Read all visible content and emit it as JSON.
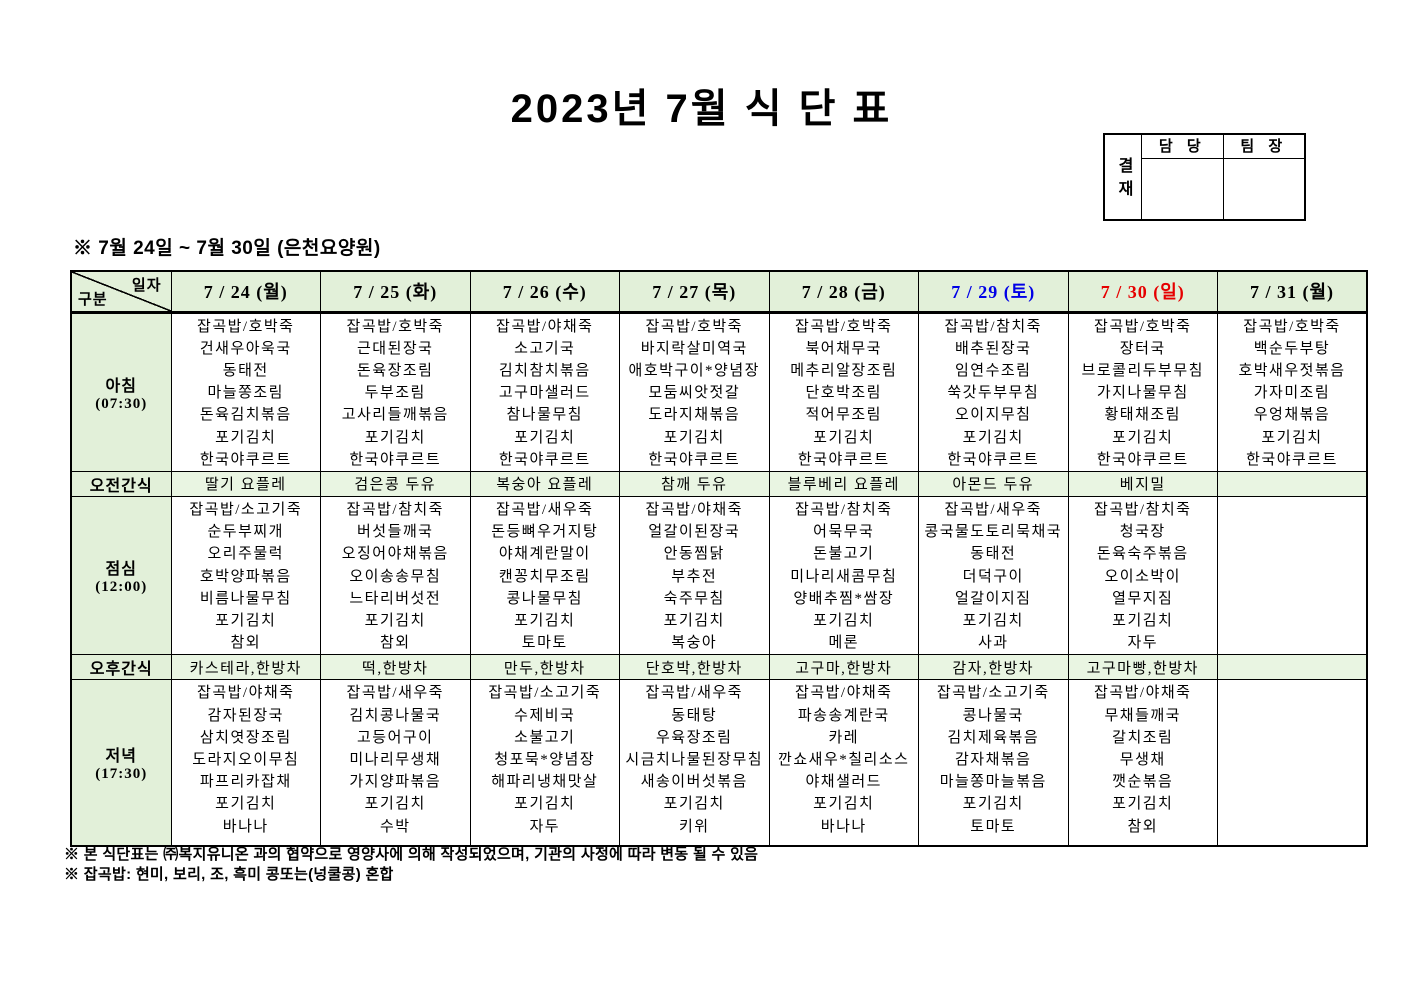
{
  "page": {
    "title": "2023년 7월 식 단 표",
    "subtitle": "※ 7월 24일 ~ 7월 30일 (은천요양원)",
    "notes": [
      "※ 본 식단표는 ㈜복지유니온 과의 협약으로 영양사에 의해 작성되었으며, 기관의 사정에 따라 변동 될 수 있음",
      "※ 잡곡밥: 현미, 보리, 조, 흑미 콩또는(넝쿨콩) 혼합"
    ]
  },
  "approval": {
    "stamp_label": "결재",
    "columns": [
      "담 당",
      "팀 장"
    ]
  },
  "colors": {
    "header_green": "#e2f0d9",
    "snack_green": "#e9f5e2",
    "weekday": "#000000",
    "saturday": "#0000e6",
    "sunday": "#e60000"
  },
  "table": {
    "corner": {
      "top_right": "일자",
      "bottom_left": "구분"
    },
    "columns": [
      {
        "id": "7-24",
        "label": "7 / 24 (월)",
        "color_key": "weekday"
      },
      {
        "id": "7-25",
        "label": "7 / 25 (화)",
        "color_key": "weekday"
      },
      {
        "id": "7-26",
        "label": "7 / 26 (수)",
        "color_key": "weekday"
      },
      {
        "id": "7-27",
        "label": "7 / 27 (목)",
        "color_key": "weekday"
      },
      {
        "id": "7-28",
        "label": "7 / 28 (금)",
        "color_key": "weekday"
      },
      {
        "id": "7-29",
        "label": "7 / 29 (토)",
        "color_key": "saturday"
      },
      {
        "id": "7-30",
        "label": "7 / 30 (일)",
        "color_key": "sunday"
      },
      {
        "id": "7-31",
        "label": "7 / 31 (월)",
        "color_key": "weekday"
      }
    ],
    "rows": [
      {
        "id": "breakfast",
        "type": "meal",
        "label": "아침",
        "time": "(07:30)",
        "tall": false,
        "cells": [
          [
            "잡곡밥/호박죽",
            "건새우아욱국",
            "동태전",
            "마늘쫑조림",
            "돈육김치볶음",
            "포기김치",
            "한국야쿠르트"
          ],
          [
            "잡곡밥/호박죽",
            "근대된장국",
            "돈육장조림",
            "두부조림",
            "고사리들깨볶음",
            "포기김치",
            "한국야쿠르트"
          ],
          [
            "잡곡밥/야채죽",
            "소고기국",
            "김치참치볶음",
            "고구마샐러드",
            "참나물무침",
            "포기김치",
            "한국야쿠르트"
          ],
          [
            "잡곡밥/호박죽",
            "바지락살미역국",
            "애호박구이*양념장",
            "모둠씨앗젓갈",
            "도라지채볶음",
            "포기김치",
            "한국야쿠르트"
          ],
          [
            "잡곡밥/호박죽",
            "북어채무국",
            "메추리알장조림",
            "단호박조림",
            "적어무조림",
            "포기김치",
            "한국야쿠르트"
          ],
          [
            "잡곡밥/참치죽",
            "배추된장국",
            "임연수조림",
            "쑥갓두부무침",
            "오이지무침",
            "포기김치",
            "한국야쿠르트"
          ],
          [
            "잡곡밥/호박죽",
            "장터국",
            "브로콜리두부무침",
            "가지나물무침",
            "황태채조림",
            "포기김치",
            "한국야쿠르트"
          ],
          [
            "잡곡밥/호박죽",
            "백순두부탕",
            "호박새우젓볶음",
            "가자미조림",
            "우엉채볶음",
            "포기김치",
            "한국야쿠르트"
          ]
        ]
      },
      {
        "id": "am-snack",
        "type": "snack",
        "label": "오전간식",
        "cells": [
          "딸기 요플레",
          "검은콩 두유",
          "복숭아 요플레",
          "참깨 두유",
          "블루베리 요플레",
          "아몬드 두유",
          "베지밀",
          ""
        ]
      },
      {
        "id": "lunch",
        "type": "meal",
        "label": "점심",
        "time": "(12:00)",
        "tall": false,
        "cells": [
          [
            "잡곡밥/소고기죽",
            "순두부찌개",
            "오리주물럭",
            "호박양파볶음",
            "비름나물무침",
            "포기김치",
            "참외"
          ],
          [
            "잡곡밥/참치죽",
            "버섯들깨국",
            "오징어야채볶음",
            "오이송송무침",
            "느타리버섯전",
            "포기김치",
            "참외"
          ],
          [
            "잡곡밥/새우죽",
            "돈등뼈우거지탕",
            "야채계란말이",
            "캔꽁치무조림",
            "콩나물무침",
            "포기김치",
            "토마토"
          ],
          [
            "잡곡밥/야채죽",
            "얼갈이된장국",
            "안동찜닭",
            "부추전",
            "숙주무침",
            "포기김치",
            "복숭아"
          ],
          [
            "잡곡밥/참치죽",
            "어묵무국",
            "돈불고기",
            "미나리새콤무침",
            "양배추찜*쌈장",
            "포기김치",
            "메론"
          ],
          [
            "잡곡밥/새우죽",
            "콩국물도토리묵채국",
            "동태전",
            "더덕구이",
            "얼갈이지짐",
            "포기김치",
            "사과"
          ],
          [
            "잡곡밥/참치죽",
            "청국장",
            "돈육숙주볶음",
            "오이소박이",
            "열무지짐",
            "포기김치",
            "자두"
          ],
          []
        ]
      },
      {
        "id": "pm-snack",
        "type": "snack",
        "label": "오후간식",
        "cells": [
          "카스테라,한방차",
          "떡,한방차",
          "만두,한방차",
          "단호박,한방차",
          "고구마,한방차",
          "감자,한방차",
          "고구마빵,한방차",
          ""
        ]
      },
      {
        "id": "dinner",
        "type": "meal",
        "label": "저녁",
        "time": "(17:30)",
        "tall": true,
        "cells": [
          [
            "잡곡밥/야채죽",
            "감자된장국",
            "삼치엿장조림",
            "도라지오이무침",
            "파프리카잡채",
            "포기김치",
            "바나나"
          ],
          [
            "잡곡밥/새우죽",
            "김치콩나물국",
            "고등어구이",
            "미나리무생채",
            "가지양파볶음",
            "포기김치",
            "수박"
          ],
          [
            "잡곡밥/소고기죽",
            "수제비국",
            "소불고기",
            "청포묵*양념장",
            "해파리냉채맛살",
            "포기김치",
            "자두"
          ],
          [
            "잡곡밥/새우죽",
            "동태탕",
            "우육장조림",
            "시금치나물된장무침",
            "새송이버섯볶음",
            "포기김치",
            "키위"
          ],
          [
            "잡곡밥/야채죽",
            "파송송계란국",
            "카레",
            "깐쇼새우*칠리소스",
            "야채샐러드",
            "포기김치",
            "바나나"
          ],
          [
            "잡곡밥/소고기죽",
            "콩나물국",
            "김치제육볶음",
            "감자채볶음",
            "마늘쫑마늘볶음",
            "포기김치",
            "토마토"
          ],
          [
            "잡곡밥/야채죽",
            "무채들깨국",
            "갈치조림",
            "무생채",
            "깻순볶음",
            "포기김치",
            "참외"
          ],
          []
        ]
      }
    ]
  }
}
